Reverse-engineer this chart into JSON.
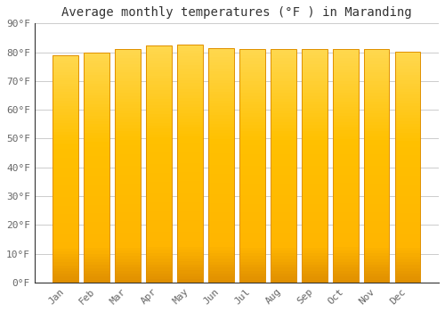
{
  "title": "Average monthly temperatures (°F ) in Maranding",
  "months": [
    "Jan",
    "Feb",
    "Mar",
    "Apr",
    "May",
    "Jun",
    "Jul",
    "Aug",
    "Sep",
    "Oct",
    "Nov",
    "Dec"
  ],
  "values": [
    79.0,
    80.0,
    81.0,
    82.2,
    82.6,
    81.5,
    81.0,
    81.0,
    81.0,
    81.2,
    81.0,
    80.2
  ],
  "bar_color": "#FFB020",
  "bar_edge_color": "#E09000",
  "bar_highlight_color": "#FFD878",
  "background_color": "#FFFFFF",
  "grid_color": "#CCCCCC",
  "ylim": [
    0,
    90
  ],
  "yticks": [
    0,
    10,
    20,
    30,
    40,
    50,
    60,
    70,
    80,
    90
  ],
  "ytick_labels": [
    "0°F",
    "10°F",
    "20°F",
    "30°F",
    "40°F",
    "50°F",
    "60°F",
    "70°F",
    "80°F",
    "90°F"
  ],
  "title_fontsize": 10,
  "tick_fontsize": 8,
  "font_family": "monospace"
}
